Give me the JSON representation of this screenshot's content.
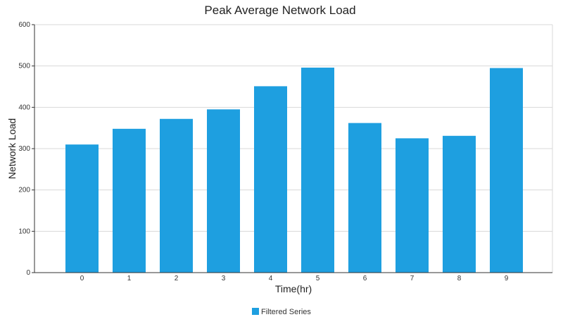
{
  "chart_data": {
    "type": "bar",
    "title": "Peak Average Network Load",
    "xlabel": "Time(hr)",
    "ylabel": "Network Load",
    "categories": [
      "0",
      "1",
      "2",
      "3",
      "4",
      "5",
      "6",
      "7",
      "8",
      "9"
    ],
    "series": [
      {
        "name": "Filtered Series",
        "values": [
          310,
          348,
          372,
          395,
          451,
          496,
          362,
          325,
          331,
          495
        ]
      }
    ],
    "ylim": [
      0,
      600
    ],
    "yticks": [
      0,
      100,
      200,
      300,
      400,
      500,
      600
    ],
    "grid": "horizontal",
    "legend_position": "bottom-center",
    "colors": {
      "bar": "#1e9fe0",
      "grid": "#d8d8d8",
      "axis": "#333333"
    }
  }
}
